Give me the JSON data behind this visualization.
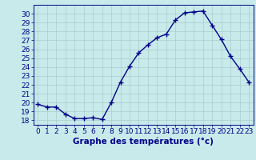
{
  "x": [
    0,
    1,
    2,
    3,
    4,
    5,
    6,
    7,
    8,
    9,
    10,
    11,
    12,
    13,
    14,
    15,
    16,
    17,
    18,
    19,
    20,
    21,
    22,
    23
  ],
  "y": [
    19.8,
    19.5,
    19.5,
    18.7,
    18.2,
    18.2,
    18.3,
    18.1,
    20.0,
    22.3,
    24.1,
    25.6,
    26.5,
    27.3,
    27.7,
    29.3,
    30.1,
    30.2,
    30.3,
    28.7,
    27.1,
    25.2,
    23.8,
    22.3
  ],
  "xlim": [
    -0.5,
    23.5
  ],
  "ylim": [
    17.5,
    31.0
  ],
  "yticks": [
    18,
    19,
    20,
    21,
    22,
    23,
    24,
    25,
    26,
    27,
    28,
    29,
    30
  ],
  "xticks": [
    0,
    1,
    2,
    3,
    4,
    5,
    6,
    7,
    8,
    9,
    10,
    11,
    12,
    13,
    14,
    15,
    16,
    17,
    18,
    19,
    20,
    21,
    22,
    23
  ],
  "line_color": "#00008b",
  "marker": "+",
  "bg_color": "#c8eaea",
  "grid_color": "#a8cece",
  "xlabel": "Graphe des températures (°c)",
  "xlabel_color": "#00008b",
  "xlabel_fontsize": 7.5,
  "tick_fontsize": 6.5,
  "tick_color": "#00008b",
  "linewidth": 1.0,
  "markersize": 4,
  "markeredgewidth": 1.0
}
